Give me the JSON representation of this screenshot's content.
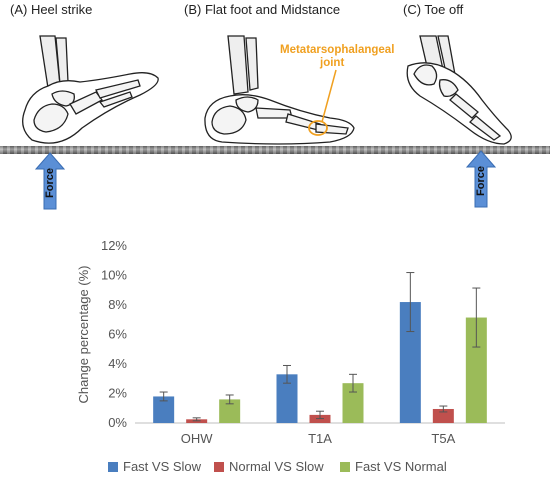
{
  "panels": [
    {
      "label": "(A) Heel strike"
    },
    {
      "label": "(B) Flat foot and Midstance"
    },
    {
      "label": "(C) Toe off"
    }
  ],
  "annotation": {
    "line1": "Metatarsophalangeal",
    "line2": "joint",
    "color": "#f0a020"
  },
  "force": {
    "label": "Force",
    "color": "#5b8fd6"
  },
  "chart_data": {
    "type": "bar",
    "categories": [
      "OHW",
      "T1A",
      "T5A"
    ],
    "series": [
      {
        "name": "Fast VS Slow",
        "color": "#4a7ebf",
        "values": [
          1.8,
          3.3,
          8.2
        ],
        "errors": [
          0.3,
          0.6,
          2.0
        ]
      },
      {
        "name": "Normal VS Slow",
        "color": "#c0504d",
        "values": [
          0.25,
          0.55,
          0.95
        ],
        "errors": [
          0.1,
          0.25,
          0.2
        ]
      },
      {
        "name": "Fast VS Normal",
        "color": "#9bbb59",
        "values": [
          1.6,
          2.7,
          7.15
        ],
        "errors": [
          0.3,
          0.6,
          2.0
        ]
      }
    ],
    "ylabel": "Change percentage (%)",
    "xlabel": "",
    "ylim": [
      0,
      12
    ],
    "yticks": [
      "0%",
      "2%",
      "4%",
      "6%",
      "8%",
      "10%",
      "12%"
    ],
    "legend_position": "bottom",
    "grid": false
  }
}
